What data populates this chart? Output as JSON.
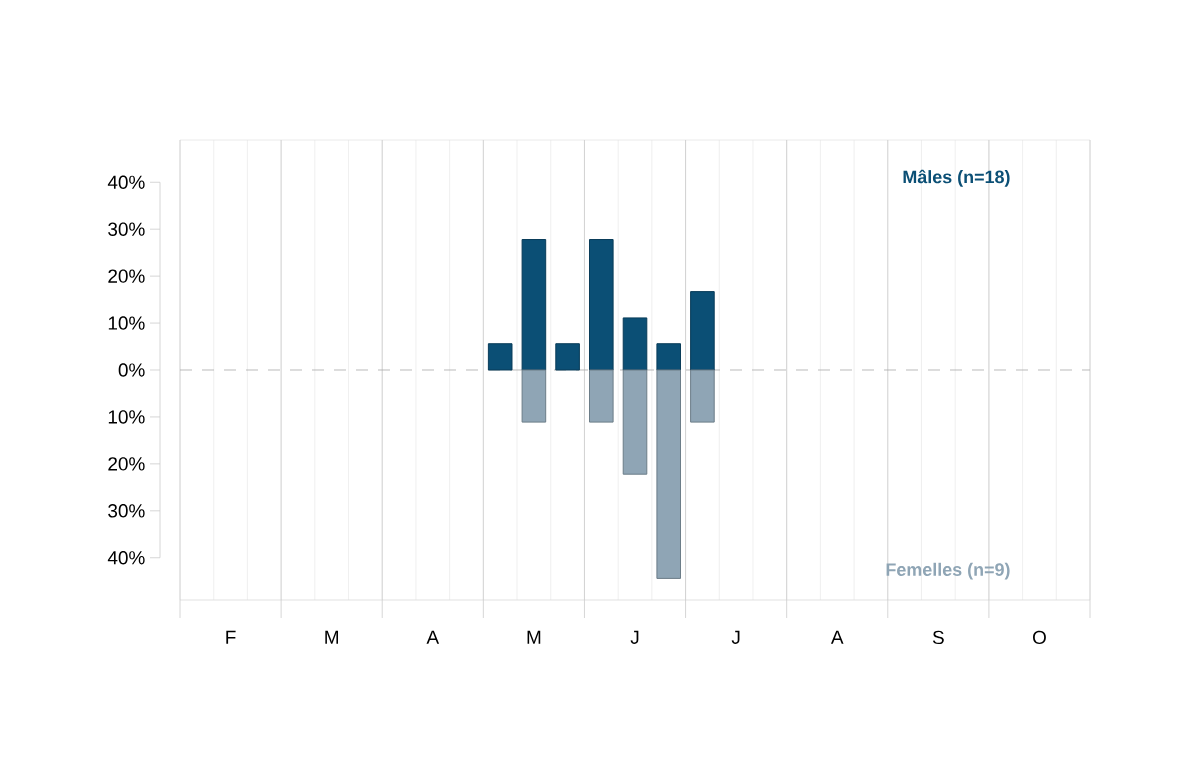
{
  "chart_data": {
    "type": "bar",
    "stacked": true,
    "categories": [
      null,
      "F",
      null,
      null,
      "M",
      null,
      null,
      "A",
      null,
      null,
      "M",
      null,
      null,
      "J",
      null,
      null,
      "J",
      null,
      null,
      "A",
      null,
      null,
      "S",
      null,
      null,
      "O",
      null
    ],
    "series": [
      {
        "name": "Mâles (n=18)",
        "color": "#0b4f75",
        "values": [
          null,
          null,
          null,
          null,
          null,
          null,
          null,
          null,
          null,
          5.6,
          27.8,
          5.6,
          27.8,
          11.1,
          5.6,
          16.7,
          null,
          null,
          null,
          null,
          null,
          null,
          null,
          null,
          null,
          null,
          null
        ]
      },
      {
        "name": "Femelles (n=9)",
        "color": "#8fa5b5",
        "values": [
          null,
          null,
          null,
          null,
          null,
          null,
          null,
          null,
          null,
          null,
          -11.1,
          null,
          -11.1,
          -22.2,
          -44.4,
          -11.1,
          null,
          null,
          null,
          null,
          null,
          null,
          null,
          null,
          null,
          null,
          null
        ]
      }
    ],
    "ylim": [
      -49,
      49
    ],
    "yticks": [
      {
        "value": -40,
        "label": "40%"
      },
      {
        "value": -30,
        "label": "30%"
      },
      {
        "value": -20,
        "label": "20%"
      },
      {
        "value": -10,
        "label": "10%"
      },
      {
        "value": 0,
        "label": "0%"
      },
      {
        "value": 10,
        "label": "10%"
      },
      {
        "value": 20,
        "label": "20%"
      },
      {
        "value": 30,
        "label": "30%"
      },
      {
        "value": 40,
        "label": "40%"
      }
    ],
    "ref_lines": [
      {
        "axis": "y",
        "value": 0,
        "color": "#aaaaaa",
        "line_style": "dashed"
      }
    ],
    "grid": "x"
  }
}
